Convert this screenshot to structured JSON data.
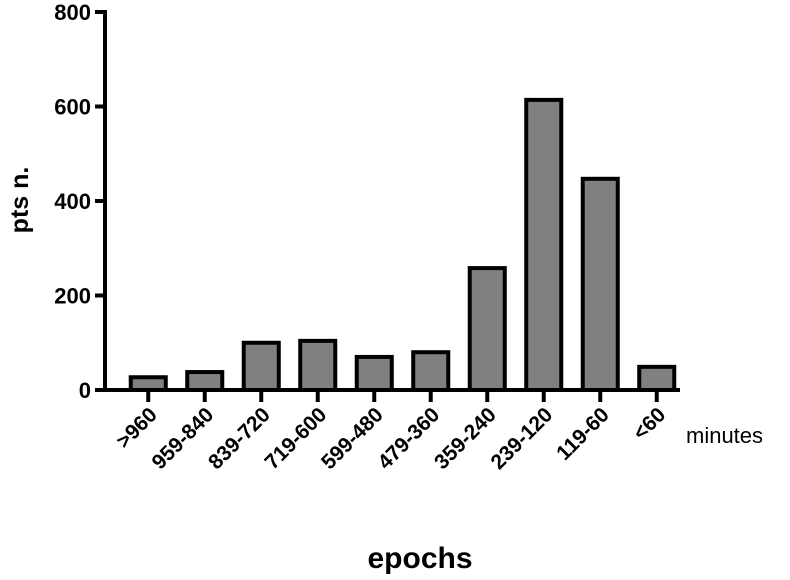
{
  "chart_data": {
    "type": "bar",
    "x_label": "epochs",
    "y_label": "pts n.",
    "x_unit": "minutes",
    "categories": [
      ">960",
      "959-840",
      "839-720",
      "719-600",
      "599-480",
      "479-360",
      "359-240",
      "239-120",
      "119-60",
      "<60"
    ],
    "values": [
      27,
      38,
      100,
      104,
      70,
      80,
      258,
      614,
      447,
      49
    ],
    "color": "#808080",
    "ylim": [
      0,
      800
    ],
    "yticks": [
      0,
      200,
      400,
      600,
      800
    ],
    "grid": false
  }
}
